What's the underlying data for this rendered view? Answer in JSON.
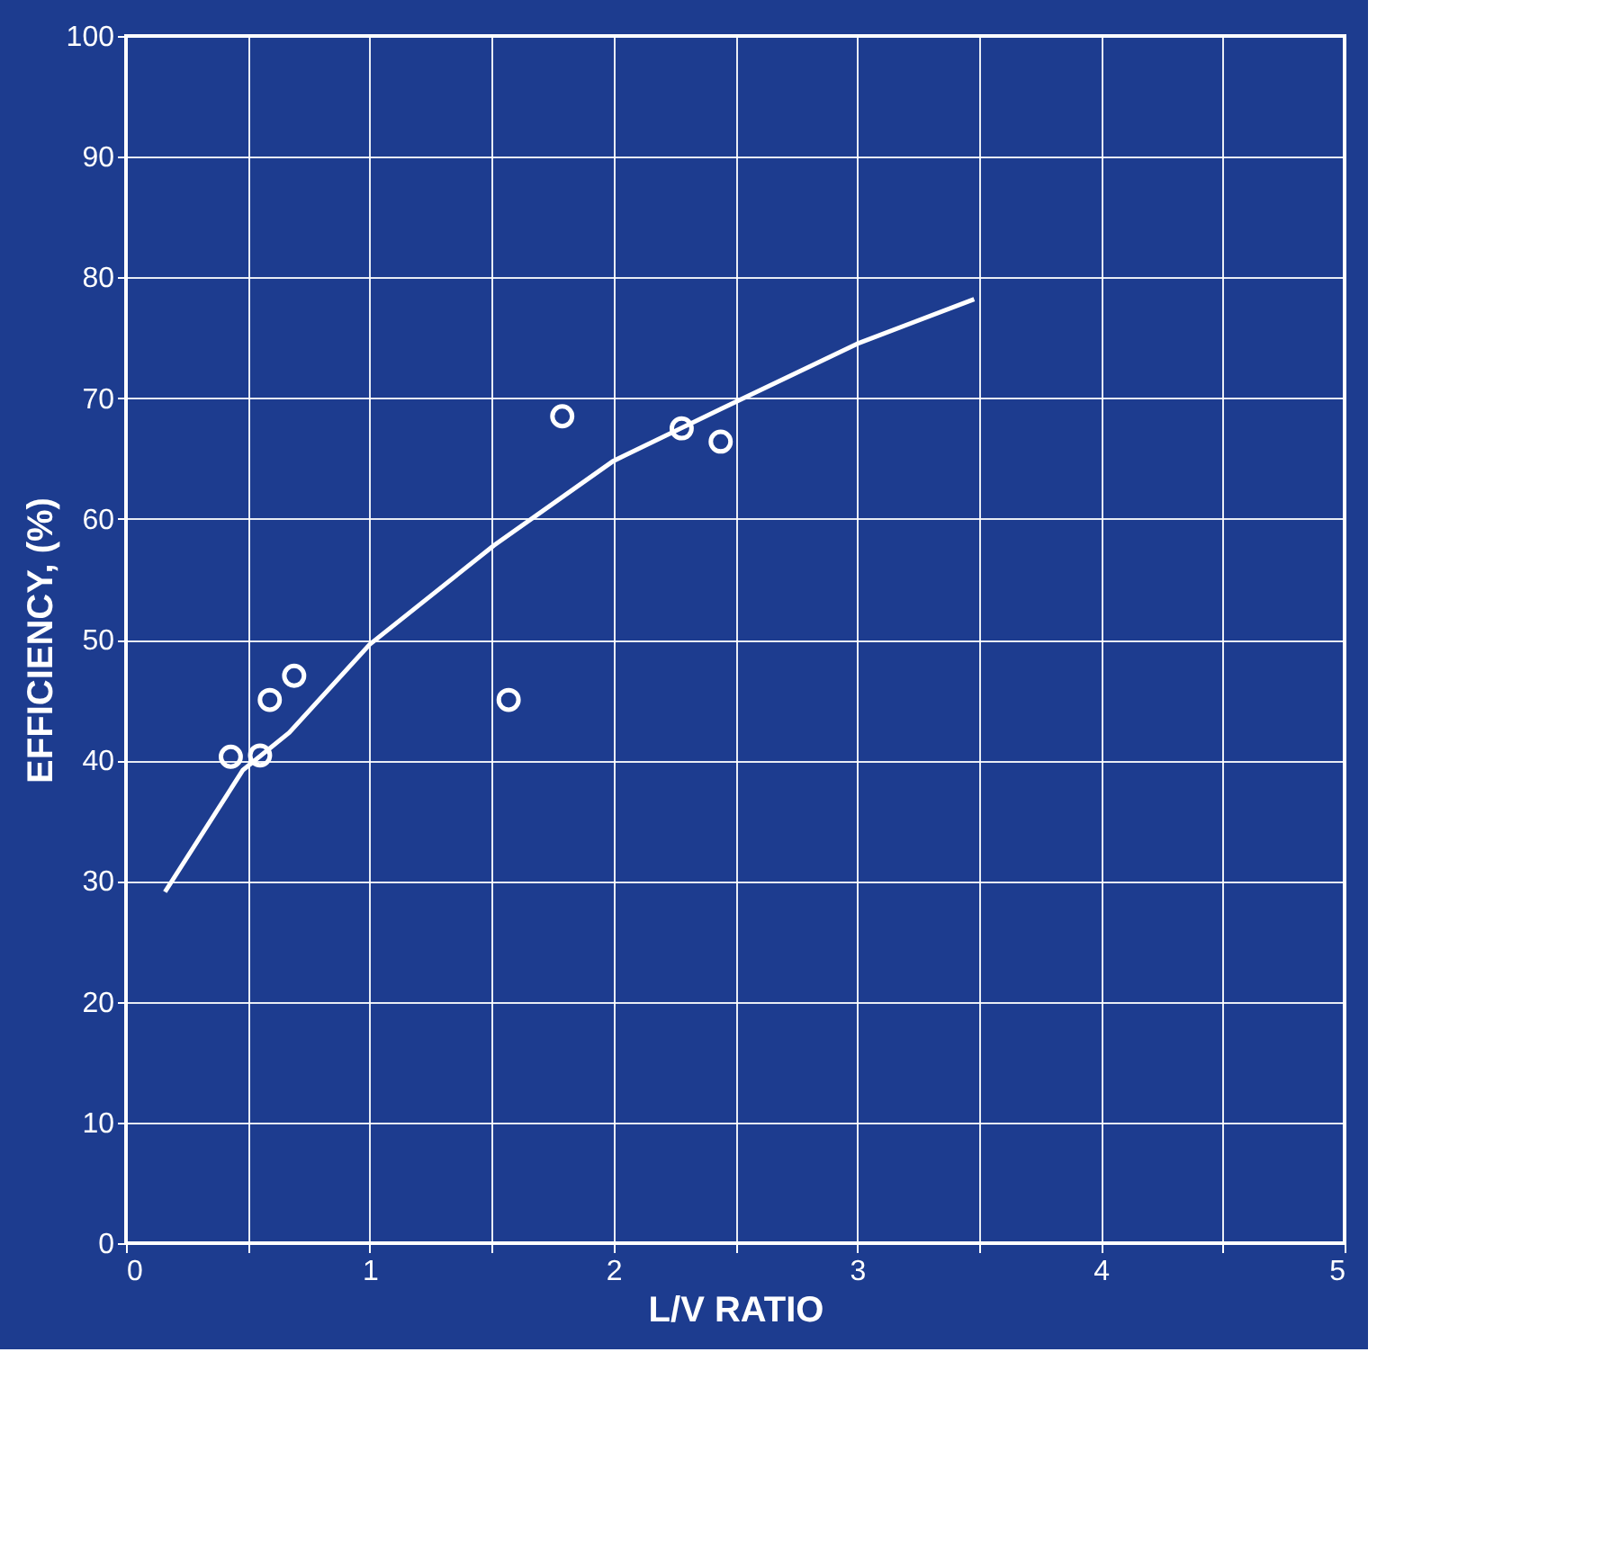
{
  "chart_data": {
    "type": "scatter",
    "xlabel": "L/V RATIO",
    "ylabel": "EFFICIENCY, (%)",
    "xlim": [
      0,
      5
    ],
    "xticks": [
      0,
      {
        "value": 0.5,
        "label": null
      },
      1,
      {
        "value": 1.5,
        "label": null
      },
      2,
      {
        "value": 2.5,
        "label": null
      },
      3,
      {
        "value": 3.5,
        "label": null
      },
      4,
      {
        "value": 4.5,
        "label": null
      },
      5
    ],
    "ylim": [
      0,
      100
    ],
    "yticks": [
      0,
      10,
      20,
      30,
      40,
      50,
      60,
      70,
      80,
      90,
      100
    ],
    "grid": true,
    "marker": "circle",
    "series": [
      {
        "color": "#ffffff",
        "x": [
          0.43,
          0.55,
          0.59,
          0.69,
          1.57,
          1.79,
          2.28,
          2.44
        ],
        "values": [
          40.3,
          40.4,
          45,
          47,
          45,
          68.5,
          67.5,
          66.4
        ]
      },
      {
        "type": "line",
        "color": "#ffffff",
        "line_style": "solid",
        "marker": "none",
        "x": [
          0.16,
          0.48,
          0.67,
          1.0,
          1.51,
          2.0,
          2.44,
          3.0,
          3.48
        ],
        "values": [
          29.1,
          39.2,
          42.3,
          49.6,
          57.8,
          64.8,
          69.1,
          74.5,
          78.2
        ]
      }
    ]
  }
}
